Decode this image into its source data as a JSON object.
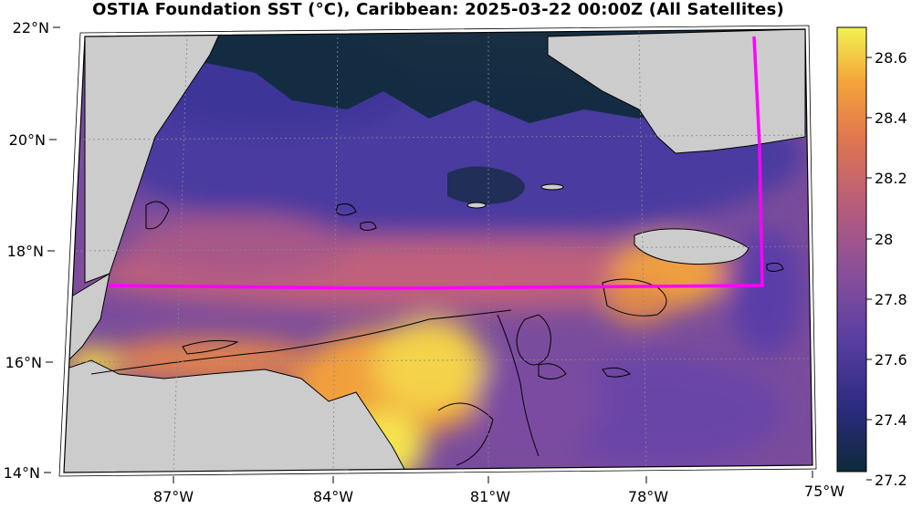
{
  "title": "OSTIA Foundation SST (°C), Caribbean: 2025-03-22 00:00Z (All Satellites)",
  "map": {
    "lat_labels": [
      "22°N",
      "20°N",
      "18°N",
      "16°N",
      "14°N"
    ],
    "lon_labels": [
      "87°W",
      "84°W",
      "81°W",
      "78°W",
      "75°W"
    ],
    "colors": {
      "land": "#cccccc",
      "boundary": "#ff00ff",
      "coast": "#000000"
    }
  },
  "colorbar": {
    "ticks": [
      "28.6",
      "28.4",
      "28.2",
      "28",
      "27.8",
      "27.6",
      "27.4",
      "27.2"
    ],
    "min": 27.2,
    "max": 28.7,
    "colormap": [
      "#0e2a3a",
      "#2b2b7e",
      "#5a3fa3",
      "#8a4f9a",
      "#b85c7c",
      "#e0764f",
      "#f4a53a",
      "#f2f252"
    ]
  }
}
